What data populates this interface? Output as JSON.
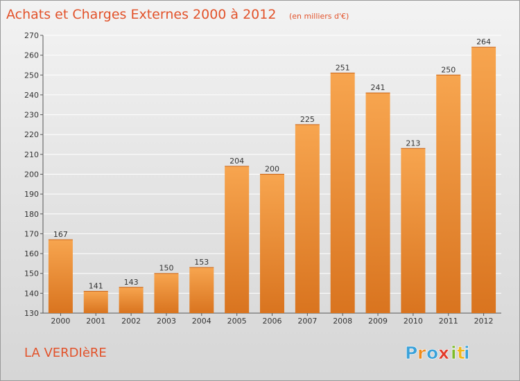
{
  "header": {
    "title": "Achats et Charges Externes 2000 à 2012",
    "unit": "(en milliers d'€)"
  },
  "footer": {
    "commune": "LA VERDIèRE",
    "logo_text": "Proxiti"
  },
  "colors": {
    "bar_top": "#f7a54f",
    "bar_bottom": "#d9741f",
    "title": "#e2522a",
    "logo": [
      "#3aa1d9",
      "#f08a1c",
      "#3aa1d9",
      "#e23a2a",
      "#7dbb2a",
      "#f0b81c",
      "#3aa1d9"
    ]
  },
  "chart_data": {
    "type": "bar",
    "title": "Achats et Charges Externes 2000 à 2012",
    "subtitle": "(en milliers d'€)",
    "categories": [
      "2000",
      "2001",
      "2002",
      "2003",
      "2004",
      "2005",
      "2006",
      "2007",
      "2008",
      "2009",
      "2010",
      "2011",
      "2012"
    ],
    "values": [
      167,
      141,
      143,
      150,
      153,
      204,
      200,
      225,
      251,
      241,
      213,
      250,
      264
    ],
    "ylim": [
      130,
      270
    ],
    "yticks": [
      130,
      140,
      150,
      160,
      170,
      180,
      190,
      200,
      210,
      220,
      230,
      240,
      250,
      260,
      270
    ],
    "grid": true,
    "data_labels": true
  }
}
